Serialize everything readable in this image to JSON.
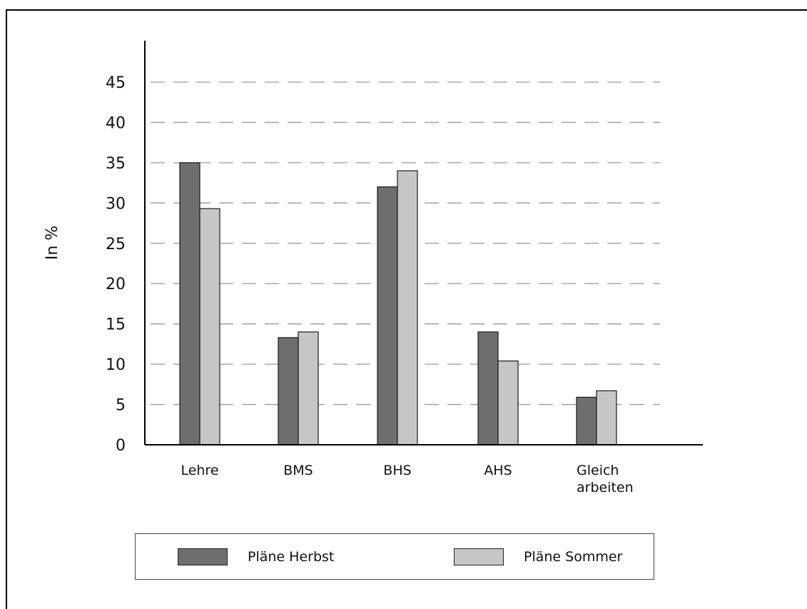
{
  "chart_data": {
    "type": "bar",
    "ylabel": "In %",
    "xlabel": "",
    "ylim": [
      0,
      45
    ],
    "yticks": [
      0,
      5,
      10,
      15,
      20,
      25,
      30,
      35,
      40,
      45
    ],
    "grid": "horizontal dashed",
    "categories": [
      "Lehre",
      "BMS",
      "BHS",
      "AHS",
      "Gleich arbeiten"
    ],
    "series": [
      {
        "name": "Pläne Herbst",
        "color": "#6e6e6e",
        "values": [
          35,
          13.3,
          32,
          14,
          5.9
        ]
      },
      {
        "name": "Pläne Sommer",
        "color": "#c6c6c6",
        "values": [
          29.3,
          14,
          34,
          10.4,
          6.7
        ]
      }
    ],
    "legend_position": "bottom"
  }
}
